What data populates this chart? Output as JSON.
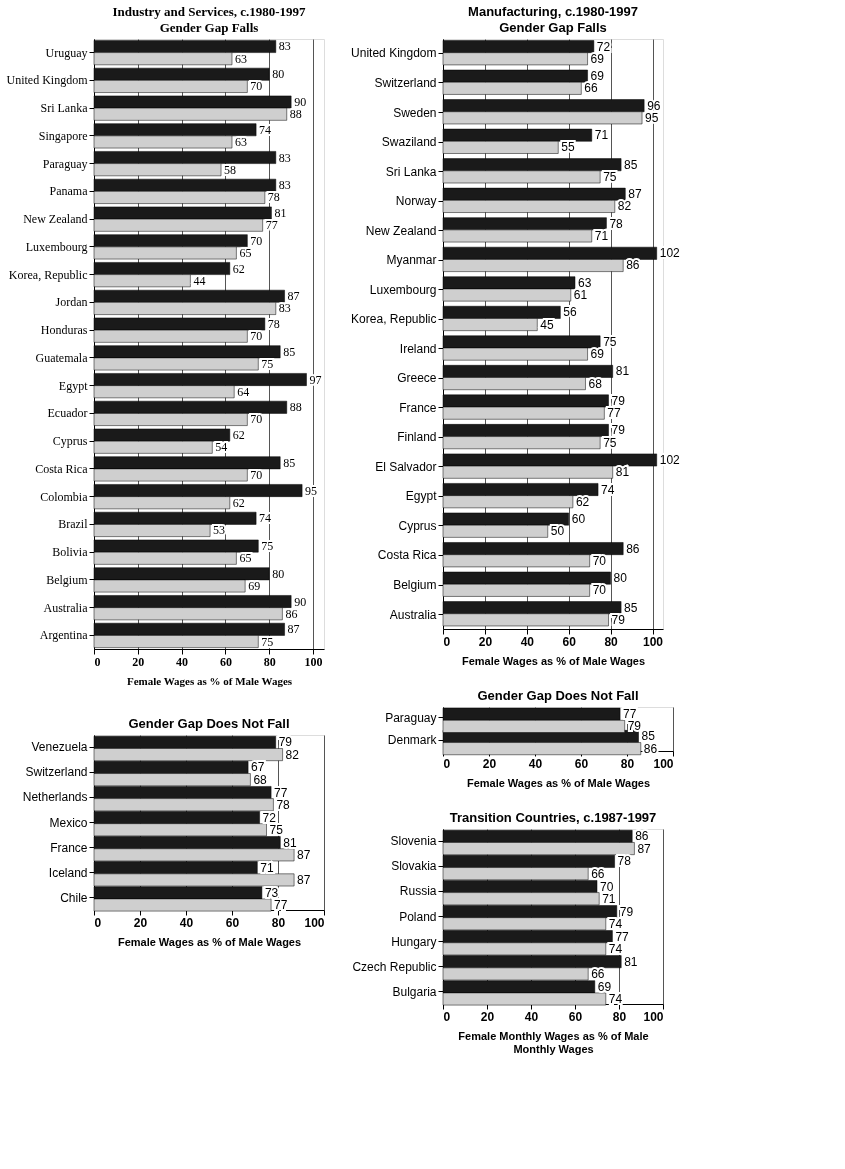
{
  "chart_data": [
    {
      "type": "bar",
      "orientation": "horizontal",
      "title": "Industry and Services, c.1980-1997",
      "subtitle": "Gender Gap Falls",
      "xlabel": "Female Wages as % of Male Wages",
      "categories": [
        "Uruguay",
        "United Kingdom",
        "Sri Lanka",
        "Singapore",
        "Paraguay",
        "Panama",
        "New Zealand",
        "Luxembourg",
        "Korea, Republic",
        "Jordan",
        "Honduras",
        "Guatemala",
        "Egypt",
        "Ecuador",
        "Cyprus",
        "Costa Rica",
        "Colombia",
        "Brazil",
        "Bolivia",
        "Belgium",
        "Australia",
        "Argentina"
      ],
      "series": [
        {
          "color": "#1a1a1a",
          "values": [
            83,
            80,
            90,
            74,
            83,
            83,
            81,
            70,
            62,
            87,
            78,
            85,
            97,
            88,
            62,
            85,
            95,
            74,
            75,
            80,
            90,
            87
          ]
        },
        {
          "color": "#cfcfcf",
          "values": [
            63,
            70,
            88,
            63,
            58,
            78,
            77,
            65,
            44,
            83,
            70,
            75,
            64,
            70,
            54,
            70,
            62,
            53,
            65,
            69,
            86,
            75
          ]
        }
      ],
      "xlim": [
        0,
        105
      ],
      "xticks": [
        0,
        20,
        40,
        60,
        80,
        100
      ],
      "grid": "x",
      "data_labels": true,
      "legend": false
    },
    {
      "type": "bar",
      "orientation": "horizontal",
      "title": "Manufacturing, c.1980-1997",
      "subtitle": "Gender Gap Falls",
      "xlabel": "Female Wages as % of Male Wages",
      "categories": [
        "United Kingdom",
        "Switzerland",
        "Sweden",
        "Swaziland",
        "Sri Lanka",
        "Norway",
        "New Zealand",
        "Myanmar",
        "Luxembourg",
        "Korea, Republic",
        "Ireland",
        "Greece",
        "France",
        "Finland",
        "El Salvador",
        "Egypt",
        "Cyprus",
        "Costa Rica",
        "Belgium",
        "Australia"
      ],
      "series": [
        {
          "color": "#1a1a1a",
          "values": [
            72,
            69,
            96,
            71,
            85,
            87,
            78,
            102,
            63,
            56,
            75,
            81,
            79,
            79,
            102,
            74,
            60,
            86,
            80,
            85
          ]
        },
        {
          "color": "#cfcfcf",
          "values": [
            69,
            66,
            95,
            55,
            75,
            82,
            71,
            86,
            61,
            45,
            69,
            68,
            77,
            75,
            81,
            62,
            50,
            70,
            70,
            79
          ]
        }
      ],
      "xlim": [
        0,
        105
      ],
      "xticks": [
        0,
        20,
        40,
        60,
        80,
        100
      ],
      "grid": "x",
      "data_labels": true,
      "legend": false
    },
    {
      "type": "bar",
      "orientation": "horizontal",
      "title": "Gender Gap Does Not Fall",
      "xlabel": "Female Wages as % of Male Wages",
      "categories": [
        "Venezuela",
        "Switzerland",
        "Netherlands",
        "Mexico",
        "France",
        "Iceland",
        "Chile"
      ],
      "series": [
        {
          "color": "#1a1a1a",
          "values": [
            79,
            67,
            77,
            72,
            81,
            71,
            73
          ]
        },
        {
          "color": "#cfcfcf",
          "values": [
            82,
            68,
            78,
            75,
            87,
            87,
            77
          ]
        }
      ],
      "xlim": [
        0,
        100
      ],
      "xticks": [
        0,
        20,
        40,
        60,
        80,
        100
      ],
      "grid": "x",
      "data_labels": true,
      "legend": false
    },
    {
      "type": "bar",
      "orientation": "horizontal",
      "title": "Gender Gap Does Not Fall",
      "xlabel": "Female Wages as % of Male Wages",
      "categories": [
        "Paraguay",
        "Denmark"
      ],
      "series": [
        {
          "color": "#1a1a1a",
          "values": [
            77,
            85
          ]
        },
        {
          "color": "#cfcfcf",
          "values": [
            79,
            86
          ]
        }
      ],
      "xlim": [
        0,
        100
      ],
      "xticks": [
        0,
        20,
        40,
        60,
        80,
        100
      ],
      "grid": "x",
      "data_labels": true,
      "legend": false
    },
    {
      "type": "bar",
      "orientation": "horizontal",
      "title": "Transition Countries, c.1987-1997",
      "xlabel": "Female Monthly Wages as % of Male Monthly Wages",
      "categories": [
        "Slovenia",
        "Slovakia",
        "Russia",
        "Poland",
        "Hungary",
        "Czech Republic",
        "Bulgaria"
      ],
      "series": [
        {
          "color": "#1a1a1a",
          "values": [
            86,
            78,
            70,
            79,
            77,
            81,
            69
          ]
        },
        {
          "color": "#cfcfcf",
          "values": [
            87,
            66,
            71,
            74,
            74,
            66,
            74
          ]
        }
      ],
      "xlim": [
        0,
        100
      ],
      "xticks": [
        0,
        20,
        40,
        60,
        80,
        100
      ],
      "grid": "x",
      "data_labels": true,
      "legend": false
    }
  ]
}
